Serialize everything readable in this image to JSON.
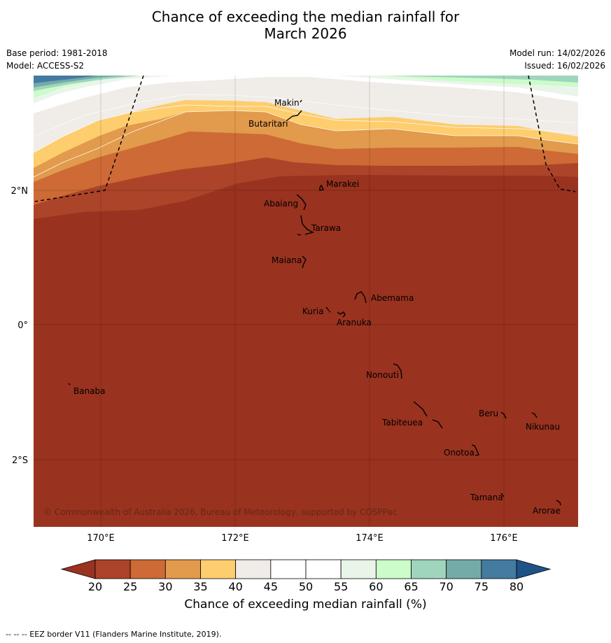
{
  "title_line1": "Chance of exceeding the median rainfall for",
  "title_line2": "March 2026",
  "base_period": "Base period: 1981-2018",
  "model": "Model: ACCESS-S2",
  "model_run": "Model run: 14/02/2026",
  "issued": "Issued: 16/02/2026",
  "lat_labels": [
    "2°N",
    "0°",
    "2°S"
  ],
  "lon_labels": [
    "170°E",
    "172°E",
    "174°E",
    "176°E"
  ],
  "places": [
    "Makin",
    "Butaritari",
    "Marakei",
    "Abaiang",
    "Tarawa",
    "Maiana",
    "Abemama",
    "Kuria",
    "Aranuka",
    "Nonouti",
    "Banaba",
    "Beru",
    "Nikunau",
    "Tabiteuea",
    "Onotoa",
    "Tamana",
    "Arorae"
  ],
  "copyright": "© Commonwealth of Australia 2026, Bureau of Meteorology, supported by COSPPac",
  "colorbar": {
    "ticks": [
      "20",
      "25",
      "30",
      "35",
      "40",
      "45",
      "50",
      "55",
      "60",
      "65",
      "70",
      "75",
      "80"
    ],
    "colors": [
      "#ab4428",
      "#cd6a35",
      "#e29a4c",
      "#fdcd6e",
      "#f0ece7",
      "#ffffff",
      "#ffffff",
      "#eaf5ea",
      "#cbfcc9",
      "#9fd4bd",
      "#74aba9",
      "#447ba0"
    ],
    "under_color": "#99321f",
    "over_color": "#1f5287",
    "title": "Chance of exceeding median rainfall (%)"
  },
  "footnote": "--  --  -- EEZ border V11 (Flanders Marine Institute, 2019)."
}
